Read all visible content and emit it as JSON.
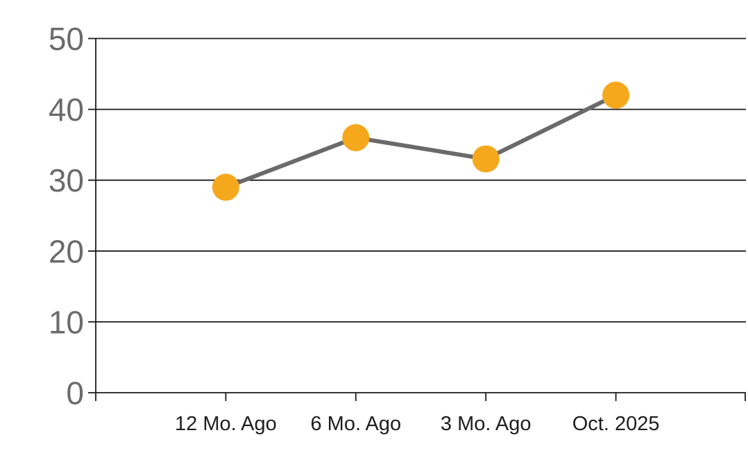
{
  "chart_data": {
    "type": "line",
    "categories": [
      "12 Mo. Ago",
      "6 Mo. Ago",
      "3 Mo. Ago",
      "Oct. 2025"
    ],
    "series": [
      {
        "name": "trend",
        "values": [
          29,
          36,
          33,
          42
        ]
      }
    ],
    "title": "",
    "xlabel": "",
    "ylabel": "",
    "ylim": [
      0,
      50
    ],
    "yticks": [
      0,
      10,
      20,
      30,
      40,
      50
    ],
    "grid": true,
    "legend": false,
    "marker_shape": "circle",
    "colors": {
      "marker": "#F6A81D",
      "line": "#6A6A6A",
      "grid": "#1A1A1A",
      "axis": "#1A1A1A",
      "ytick_label": "#6B6B6B",
      "xtick_label": "#1E1E1E",
      "background": "#FFFFFF"
    }
  }
}
